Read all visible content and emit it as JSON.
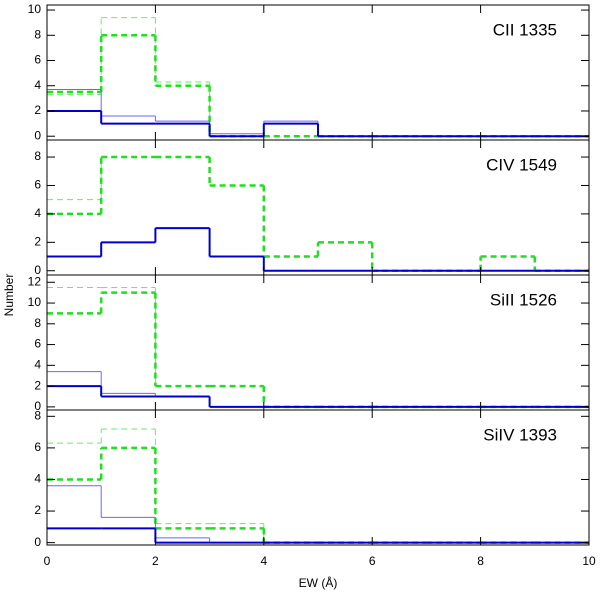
{
  "y_label": "Number",
  "chart_data": [
    {
      "type": "histogram",
      "label": "CII 1335",
      "bins": [
        0,
        1,
        2,
        3,
        4,
        5,
        6,
        7,
        8,
        9,
        10
      ],
      "xlim": [
        0,
        10
      ],
      "xticks": [
        0,
        2,
        4,
        6,
        8,
        10
      ],
      "ylim": [
        -0.3,
        10.4
      ],
      "yticks": [
        0,
        2,
        4,
        6,
        8,
        10
      ],
      "series": [
        {
          "color": "#66ee66",
          "width": 1,
          "dashed": true,
          "values": [
            3.3,
            9.4,
            4.3,
            0,
            0,
            0,
            0,
            0,
            0,
            0
          ]
        },
        {
          "color": "#22dd22",
          "width": 2.5,
          "dashed": true,
          "values": [
            3.5,
            8,
            4,
            0,
            0,
            0,
            0,
            0,
            0,
            0
          ]
        },
        {
          "color": "#6666ff",
          "width": 1,
          "dashed": false,
          "values": [
            3.7,
            1.6,
            1.2,
            0.2,
            1.2,
            0,
            0,
            0,
            0,
            0
          ]
        },
        {
          "color": "#0000cc",
          "width": 2,
          "dashed": false,
          "values": [
            2,
            1,
            1,
            0,
            1,
            0,
            0,
            0,
            0,
            0
          ]
        }
      ]
    },
    {
      "type": "histogram",
      "label": "CIV 1549",
      "bins": [
        0,
        1,
        2,
        3,
        4,
        5,
        6,
        7,
        8,
        9,
        10
      ],
      "xlim": [
        0,
        10
      ],
      "xticks": [
        0,
        2,
        4,
        6,
        8,
        10
      ],
      "ylim": [
        -0.3,
        9.2
      ],
      "yticks": [
        0,
        2,
        4,
        6,
        8
      ],
      "series": [
        {
          "color": "#66ee66",
          "width": 1,
          "dashed": true,
          "values": [
            5,
            8,
            8,
            6,
            1,
            2,
            0,
            0,
            1,
            0
          ]
        },
        {
          "color": "#22dd22",
          "width": 2.5,
          "dashed": true,
          "values": [
            4,
            8,
            8,
            6,
            1,
            2,
            0,
            0,
            1,
            0
          ]
        },
        {
          "color": "#6666ff",
          "width": 1,
          "dashed": false,
          "values": [
            1,
            2,
            3,
            1,
            0,
            0,
            0,
            0,
            0,
            0
          ]
        },
        {
          "color": "#0000cc",
          "width": 2,
          "dashed": false,
          "values": [
            1,
            2,
            3,
            1,
            0,
            0,
            0,
            0,
            0,
            0
          ]
        }
      ]
    },
    {
      "type": "histogram",
      "label": "SiII 1526",
      "bins": [
        0,
        1,
        2,
        3,
        4,
        5,
        6,
        7,
        8,
        9,
        10
      ],
      "xlim": [
        0,
        10
      ],
      "xticks": [
        0,
        2,
        4,
        6,
        8,
        10
      ],
      "ylim": [
        -0.3,
        12.7
      ],
      "yticks": [
        0,
        2,
        4,
        6,
        8,
        10,
        12
      ],
      "series": [
        {
          "color": "#66ee66",
          "width": 1,
          "dashed": true,
          "values": [
            11.5,
            11.5,
            2,
            2,
            0,
            0,
            0,
            0,
            0,
            0
          ]
        },
        {
          "color": "#22dd22",
          "width": 2.5,
          "dashed": true,
          "values": [
            9,
            11,
            2,
            2,
            0,
            0,
            0,
            0,
            0,
            0
          ]
        },
        {
          "color": "#6666ff",
          "width": 1,
          "dashed": false,
          "values": [
            3.4,
            1.3,
            1,
            0,
            0,
            0,
            0,
            0,
            0,
            0
          ]
        },
        {
          "color": "#0000cc",
          "width": 2,
          "dashed": false,
          "values": [
            2,
            1,
            1,
            0,
            0,
            0,
            0,
            0,
            0,
            0
          ]
        }
      ]
    },
    {
      "type": "histogram",
      "label": "SiIV 1393",
      "bins": [
        0,
        1,
        2,
        3,
        4,
        5,
        6,
        7,
        8,
        9,
        10
      ],
      "xlim": [
        0,
        10
      ],
      "xticks": [
        0,
        2,
        4,
        6,
        8,
        10
      ],
      "x_label": "EW (Å)",
      "ylim": [
        -0.15,
        8.4
      ],
      "yticks": [
        0,
        2,
        4,
        6,
        8
      ],
      "series": [
        {
          "color": "#66ee66",
          "width": 1,
          "dashed": true,
          "values": [
            6.3,
            7.2,
            1.2,
            1.2,
            0,
            0,
            0,
            0,
            0,
            0
          ]
        },
        {
          "color": "#22dd22",
          "width": 2.5,
          "dashed": true,
          "values": [
            4,
            6,
            0.9,
            0.9,
            0,
            0,
            0,
            0,
            0,
            0
          ]
        },
        {
          "color": "#6666ff",
          "width": 1,
          "dashed": false,
          "values": [
            3.6,
            1.6,
            0.3,
            0,
            0,
            0,
            0,
            0,
            0,
            0
          ]
        },
        {
          "color": "#0000cc",
          "width": 2,
          "dashed": false,
          "values": [
            0.9,
            0.9,
            0,
            0,
            0,
            0,
            0,
            0,
            0,
            0
          ]
        }
      ]
    }
  ]
}
